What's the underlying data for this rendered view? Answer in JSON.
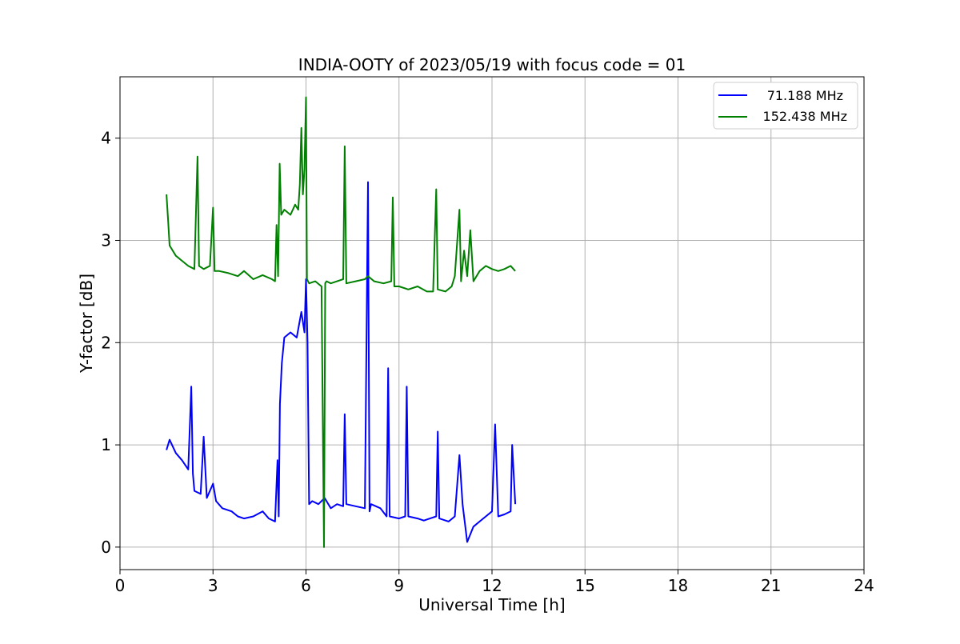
{
  "chart_data": {
    "type": "line",
    "title": "INDIA-OOTY of 2023/05/19 with focus code = 01",
    "xlabel": "Universal Time [h]",
    "ylabel": "Y-factor [dB]",
    "xlim": [
      0,
      24
    ],
    "ylim": [
      -0.22,
      4.6
    ],
    "xticks": [
      0,
      3,
      6,
      9,
      12,
      15,
      18,
      21,
      24
    ],
    "xtick_labels": [
      "0",
      "3",
      "6",
      "9",
      "12",
      "15",
      "18",
      "21",
      "24"
    ],
    "yticks": [
      0,
      1,
      2,
      3,
      4
    ],
    "ytick_labels": [
      "0",
      "1",
      "2",
      "3",
      "4"
    ],
    "grid": true,
    "legend_position": "top-right",
    "series": [
      {
        "name": "71.188 MHz",
        "color": "#0000ff",
        "x": [
          1.5,
          1.6,
          1.8,
          2.0,
          2.2,
          2.3,
          2.35,
          2.4,
          2.6,
          2.7,
          2.8,
          3.0,
          3.1,
          3.3,
          3.6,
          3.8,
          4.0,
          4.3,
          4.6,
          4.8,
          5.0,
          5.08,
          5.12,
          5.16,
          5.22,
          5.3,
          5.5,
          5.7,
          5.85,
          5.95,
          6.0,
          6.05,
          6.1,
          6.2,
          6.4,
          6.6,
          6.8,
          7.0,
          7.2,
          7.25,
          7.3,
          7.6,
          7.9,
          8.0,
          8.05,
          8.1,
          8.4,
          8.6,
          8.65,
          8.7,
          9.0,
          9.2,
          9.25,
          9.3,
          9.6,
          9.8,
          10.0,
          10.2,
          10.25,
          10.3,
          10.6,
          10.8,
          10.95,
          11.05,
          11.2,
          11.4,
          11.6,
          11.8,
          12.0,
          12.1,
          12.2,
          12.4,
          12.6,
          12.65,
          12.75
        ],
        "values": [
          0.95,
          1.05,
          0.92,
          0.85,
          0.76,
          1.57,
          0.72,
          0.55,
          0.52,
          1.08,
          0.48,
          0.62,
          0.45,
          0.38,
          0.35,
          0.3,
          0.28,
          0.3,
          0.35,
          0.28,
          0.25,
          0.85,
          0.3,
          1.4,
          1.8,
          2.05,
          2.1,
          2.05,
          2.3,
          2.1,
          2.62,
          2.0,
          0.42,
          0.45,
          0.42,
          0.48,
          0.38,
          0.42,
          0.4,
          1.3,
          0.42,
          0.4,
          0.38,
          3.57,
          0.35,
          0.42,
          0.38,
          0.3,
          1.75,
          0.3,
          0.28,
          0.3,
          1.57,
          0.3,
          0.28,
          0.26,
          0.28,
          0.3,
          1.13,
          0.28,
          0.25,
          0.3,
          0.9,
          0.42,
          0.05,
          0.2,
          0.25,
          0.3,
          0.35,
          1.2,
          0.3,
          0.32,
          0.35,
          1.0,
          0.42
        ]
      },
      {
        "name": "152.438 MHz",
        "color": "#008000",
        "x": [
          1.5,
          1.55,
          1.6,
          1.8,
          2.0,
          2.2,
          2.4,
          2.5,
          2.55,
          2.7,
          2.9,
          3.0,
          3.05,
          3.2,
          3.5,
          3.8,
          4.0,
          4.3,
          4.6,
          4.9,
          5.0,
          5.05,
          5.1,
          5.15,
          5.2,
          5.3,
          5.5,
          5.65,
          5.75,
          5.8,
          5.85,
          5.9,
          5.95,
          6.0,
          6.03,
          6.1,
          6.3,
          6.5,
          6.58,
          6.62,
          6.66,
          6.8,
          7.0,
          7.2,
          7.25,
          7.3,
          7.6,
          7.9,
          8.0,
          8.2,
          8.5,
          8.75,
          8.8,
          8.85,
          9.0,
          9.3,
          9.6,
          9.9,
          10.1,
          10.2,
          10.25,
          10.5,
          10.7,
          10.8,
          10.95,
          11.0,
          11.1,
          11.2,
          11.3,
          11.4,
          11.6,
          11.8,
          12.0,
          12.2,
          12.4,
          12.6,
          12.75
        ],
        "values": [
          3.45,
          3.2,
          2.95,
          2.85,
          2.8,
          2.75,
          2.72,
          3.82,
          2.75,
          2.72,
          2.75,
          3.32,
          2.7,
          2.7,
          2.68,
          2.65,
          2.7,
          2.62,
          2.66,
          2.62,
          2.6,
          3.15,
          2.65,
          3.75,
          3.25,
          3.3,
          3.25,
          3.35,
          3.3,
          3.55,
          4.1,
          3.45,
          3.7,
          4.4,
          2.62,
          2.58,
          2.6,
          2.55,
          0.0,
          2.58,
          2.6,
          2.58,
          2.6,
          2.62,
          3.92,
          2.58,
          2.6,
          2.62,
          2.65,
          2.6,
          2.58,
          2.6,
          3.42,
          2.55,
          2.55,
          2.52,
          2.55,
          2.5,
          2.5,
          3.5,
          2.52,
          2.5,
          2.55,
          2.65,
          3.3,
          2.6,
          2.9,
          2.65,
          3.1,
          2.6,
          2.7,
          2.75,
          2.72,
          2.7,
          2.72,
          2.75,
          2.7
        ]
      }
    ]
  }
}
